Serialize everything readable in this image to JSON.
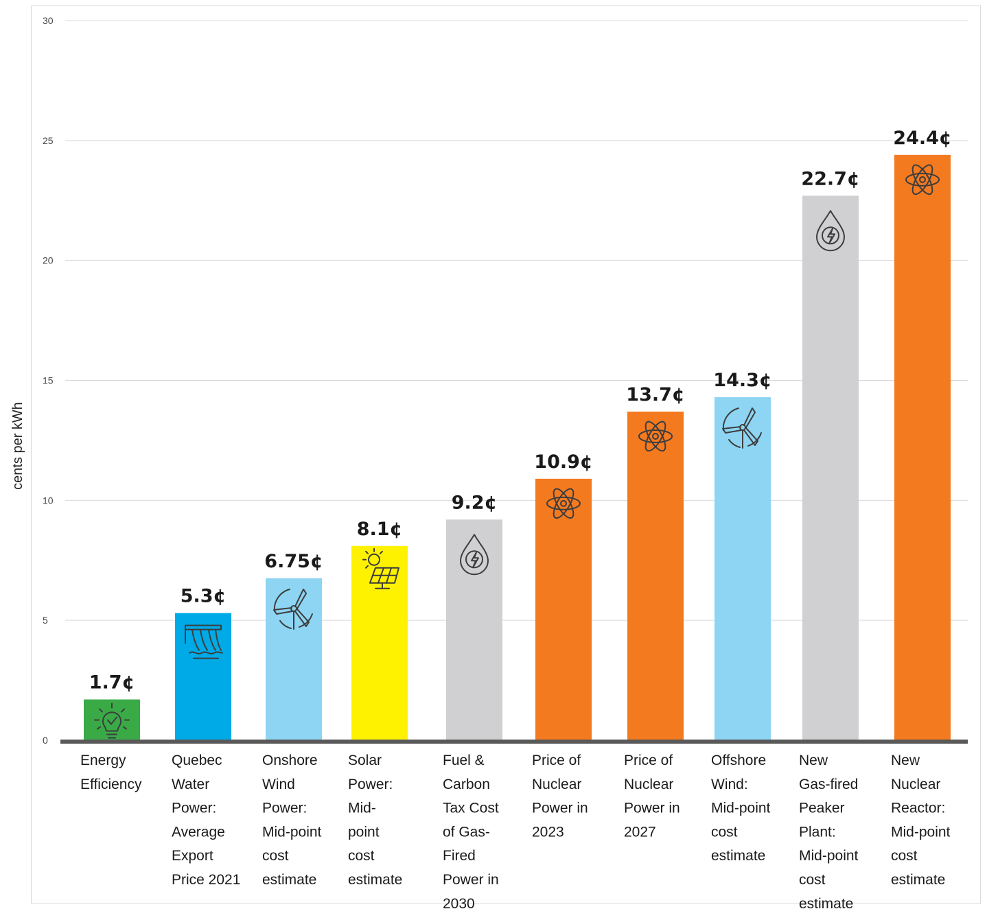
{
  "chart_data": {
    "type": "bar",
    "title": "",
    "xlabel": "",
    "ylabel": "cents per kWh",
    "ylim": [
      0,
      30
    ],
    "yticks": [
      0,
      5,
      10,
      15,
      20,
      25,
      30
    ],
    "grid": true,
    "legend": "none",
    "categories": [
      "Energy Efficiency",
      "Quebec Water Power: Average Export Price 2021",
      "Onshore Wind Power: Mid-point cost estimate",
      "Solar Power: Mid-point cost estimate",
      "Fuel & Carbon Tax Cost of Gas-Fired Power in 2030",
      "Price of Nuclear Power in 2023",
      "Price of Nuclear Power in 2027",
      "Offshore Wind: Mid-point cost estimate",
      "New Gas-fired Peaker Plant: Mid-point cost estimate",
      "New Nuclear Reactor: Mid-point cost estimate"
    ],
    "category_lines": [
      [
        "Energy",
        "Efficiency"
      ],
      [
        "Quebec",
        "Water",
        "Power:",
        "Average",
        "Export",
        "Price 2021"
      ],
      [
        "Onshore",
        "Wind",
        "Power:",
        "Mid-point",
        "cost",
        "estimate"
      ],
      [
        "Solar",
        "Power:",
        "Mid-",
        "point",
        "cost",
        "estimate"
      ],
      [
        "Fuel &",
        "Carbon",
        "Tax Cost",
        "of Gas-",
        "Fired",
        "Power in",
        "2030"
      ],
      [
        "Price of",
        "Nuclear",
        "Power in",
        "2023"
      ],
      [
        "Price of",
        "Nuclear",
        "Power in",
        "2027"
      ],
      [
        "Offshore",
        "Wind:",
        "Mid-point",
        "cost",
        "estimate"
      ],
      [
        "New",
        "Gas-fired",
        "Peaker",
        "Plant:",
        "Mid-point",
        "cost",
        "estimate"
      ],
      [
        "New",
        "Nuclear",
        "Reactor:",
        "Mid-point",
        "cost",
        "estimate"
      ]
    ],
    "values": [
      1.7,
      5.3,
      6.75,
      8.1,
      9.2,
      10.9,
      13.7,
      14.3,
      22.7,
      24.4
    ],
    "value_labels": [
      "1.7¢",
      "5.3¢",
      "6.75¢",
      "8.1¢",
      "9.2¢",
      "10.9¢",
      "13.7¢",
      "14.3¢",
      "22.7¢",
      "24.4¢"
    ],
    "colors": [
      "#3aaa47",
      "#00aae7",
      "#8dd5f3",
      "#fff200",
      "#d0d0d2",
      "#f47a20",
      "#f47a20",
      "#8dd5f3",
      "#d0d0d2",
      "#f47a20"
    ],
    "icons": [
      "lightbulb-icon",
      "hydro-dam-icon",
      "wind-turbine-icon",
      "solar-panel-icon",
      "gas-flame-icon",
      "atom-icon",
      "atom-icon",
      "wind-turbine-icon",
      "gas-flame-icon",
      "atom-icon"
    ]
  }
}
